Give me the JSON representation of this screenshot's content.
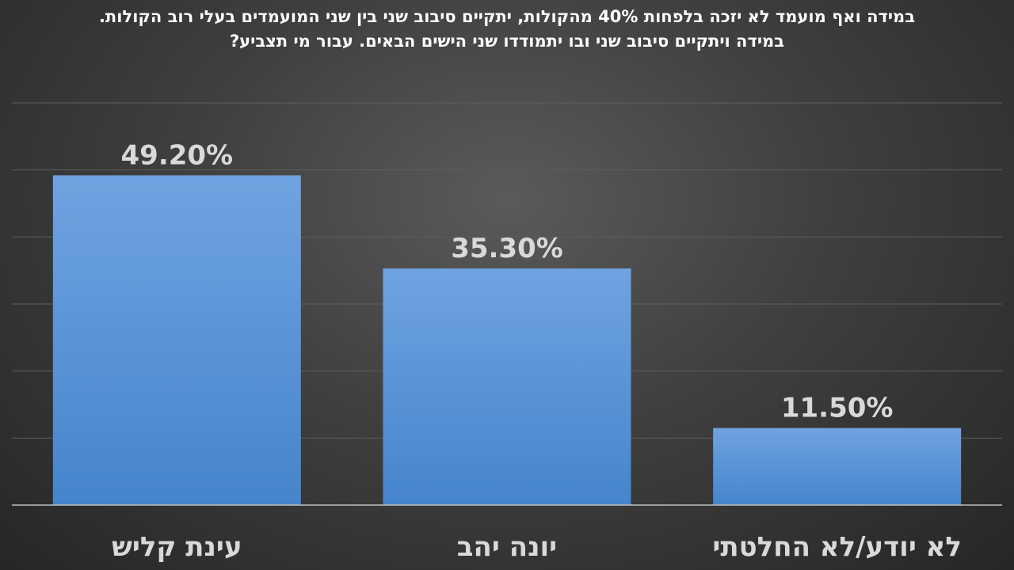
{
  "chart_data": {
    "type": "bar",
    "title": "במידה ואף מועמד לא יזכה בלפחות 40% מהקולות, יתקיים סיבוב שני בין שני המועמדים בעלי רוב הקולות. במידה ויתקיים סיבוב שני ובו יתמודדו שני הישים הבאים. עבור מי תצביע?",
    "categories": [
      "עינת קליש",
      "יונה יהב",
      "לא יודע/לא החלטתי"
    ],
    "values": [
      49.2,
      35.3,
      11.5
    ],
    "data_labels": [
      "49.20%",
      "35.30%",
      "11.50%"
    ],
    "ylim": [
      0,
      60
    ],
    "grid": true,
    "colors": {
      "bar_top": "#6fa3e0",
      "bar_bottom": "#4585cc",
      "grid": "#5e5e5e",
      "axis": "#bfbfbf",
      "label": "#d9d9d9"
    }
  }
}
